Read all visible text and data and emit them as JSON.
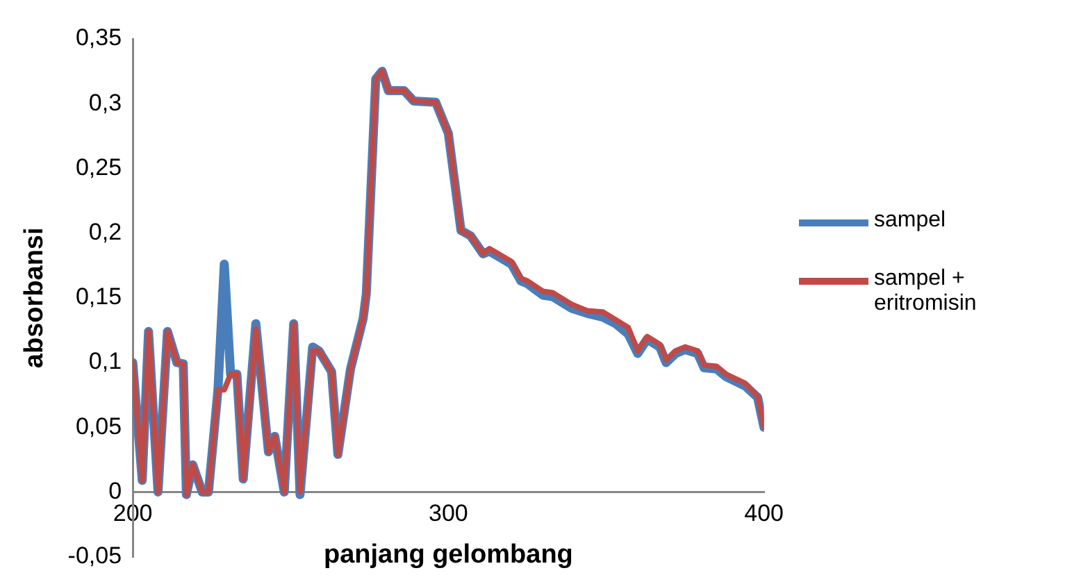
{
  "chart_data": {
    "type": "line",
    "xlabel": "panjang gelombang",
    "ylabel": "absorbansi",
    "xlim": [
      200,
      400
    ],
    "xticks": [
      200,
      300,
      400
    ],
    "ylim": [
      -0.05,
      0.35
    ],
    "yticks": [
      {
        "value": -0.05,
        "label": "-0,05"
      },
      0,
      {
        "value": 0.05,
        "label": "0,05"
      },
      {
        "value": 0.1,
        "label": "0,1"
      },
      {
        "value": 0.15,
        "label": "0,15"
      },
      {
        "value": 0.2,
        "label": "0,2"
      },
      {
        "value": 0.25,
        "label": "0,25"
      },
      {
        "value": 0.3,
        "label": "0,3"
      },
      {
        "value": 0.35,
        "label": "0,35"
      }
    ],
    "grid": false,
    "legend": "right",
    "marker": "none",
    "line_style": "solid",
    "x": [
      200,
      203,
      205,
      208,
      211,
      214,
      216,
      217,
      219,
      222,
      224,
      227,
      229,
      231,
      233,
      235,
      239,
      243,
      245,
      248,
      251,
      253,
      257,
      259,
      263,
      265,
      269,
      273,
      274,
      277,
      279,
      281,
      286,
      289,
      296,
      300,
      304,
      307,
      311,
      313,
      320,
      323,
      325,
      330,
      333,
      339,
      344,
      349,
      353,
      357,
      360,
      363,
      367,
      369,
      372,
      375,
      379,
      381,
      385,
      388,
      394,
      398,
      400
    ],
    "series": [
      {
        "name": "sampel",
        "color": "#4a7ebb",
        "values": [
          0.1,
          0.009,
          0.124,
          0.0,
          0.124,
          0.1,
          0.099,
          -0.002,
          0.021,
          0.0,
          0.0,
          0.079,
          0.176,
          0.091,
          0.091,
          0.01,
          0.13,
          0.031,
          0.043,
          0.0,
          0.13,
          -0.002,
          0.112,
          0.109,
          0.093,
          0.029,
          0.095,
          0.134,
          0.153,
          0.319,
          0.325,
          0.31,
          0.31,
          0.302,
          0.301,
          0.277,
          0.202,
          0.198,
          0.184,
          0.186,
          0.176,
          0.163,
          0.161,
          0.152,
          0.151,
          0.142,
          0.138,
          0.135,
          0.13,
          0.122,
          0.107,
          0.118,
          0.112,
          0.1,
          0.107,
          0.11,
          0.107,
          0.096,
          0.095,
          0.089,
          0.082,
          0.073,
          0.05
        ]
      },
      {
        "name": "sampel + eritromisin",
        "color": "#be4b48",
        "values": [
          0.1,
          0.009,
          0.124,
          0.0,
          0.124,
          0.1,
          0.099,
          -0.002,
          0.021,
          0.0,
          0.0,
          0.079,
          0.079,
          0.091,
          0.091,
          0.01,
          0.126,
          0.031,
          0.043,
          0.0,
          0.13,
          0.0,
          0.109,
          0.109,
          0.093,
          0.029,
          0.095,
          0.134,
          0.153,
          0.319,
          0.325,
          0.31,
          0.31,
          0.302,
          0.301,
          0.277,
          0.202,
          0.198,
          0.184,
          0.188,
          0.178,
          0.165,
          0.163,
          0.155,
          0.154,
          0.145,
          0.14,
          0.139,
          0.133,
          0.127,
          0.109,
          0.12,
          0.114,
          0.102,
          0.109,
          0.112,
          0.109,
          0.098,
          0.097,
          0.091,
          0.084,
          0.074,
          0.05
        ]
      }
    ]
  }
}
